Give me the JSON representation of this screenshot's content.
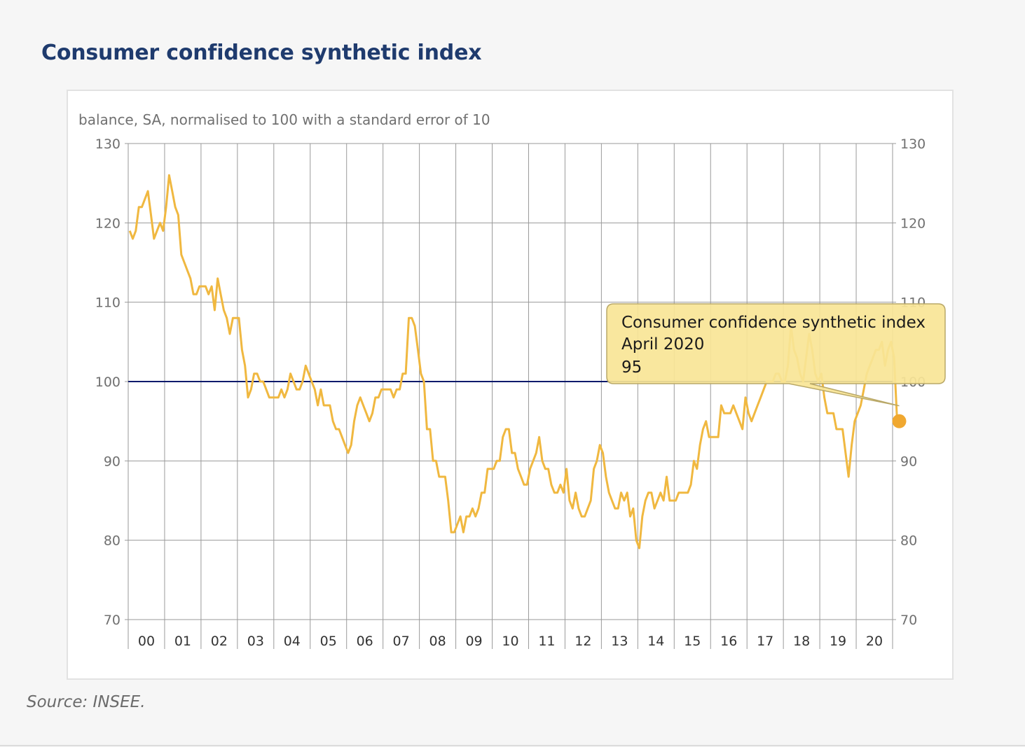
{
  "page": {
    "title": "Consumer confidence synthetic index",
    "source": "Source: INSEE."
  },
  "chart_data": {
    "type": "line",
    "title": "Consumer confidence synthetic index",
    "subtitle": "balance, SA, normalised to 100 with a standard error of 10",
    "ylim": [
      70,
      130
    ],
    "yticks": [
      70,
      80,
      90,
      100,
      110,
      120,
      130
    ],
    "yticks_labels": [
      "70",
      "80",
      "90",
      "100",
      "110",
      "120",
      "130"
    ],
    "x_start_year": 2000,
    "x_end_year": 2021,
    "xtick_labels": [
      "00",
      "01",
      "02",
      "03",
      "04",
      "05",
      "06",
      "07",
      "08",
      "09",
      "10",
      "11",
      "12",
      "13",
      "14",
      "15",
      "16",
      "17",
      "18",
      "19",
      "20"
    ],
    "reference_line": 100,
    "colors": {
      "series": "#f0b840",
      "reference": "#0a1a6b",
      "grid": "#9a9a9a",
      "highlight": "#f0a830",
      "tooltip_bg": "#f8e596",
      "tooltip_border": "#b9a868"
    },
    "series": [
      {
        "name": "Consumer confidence synthetic index",
        "start": "2000-01",
        "values": [
          119,
          118,
          119,
          122,
          122,
          123,
          124,
          121,
          118,
          119,
          120,
          119,
          122,
          126,
          124,
          122,
          121,
          116,
          115,
          114,
          113,
          111,
          111,
          112,
          112,
          112,
          111,
          112,
          109,
          113,
          111,
          109,
          108,
          106,
          108,
          108,
          108,
          104,
          102,
          98,
          99,
          101,
          101,
          100,
          100,
          99,
          98,
          98,
          98,
          98,
          99,
          98,
          99,
          101,
          100,
          99,
          99,
          100,
          102,
          101,
          100,
          99,
          97,
          99,
          97,
          97,
          97,
          95,
          94,
          94,
          93,
          92,
          91,
          92,
          95,
          97,
          98,
          97,
          96,
          95,
          96,
          98,
          98,
          99,
          99,
          99,
          99,
          98,
          99,
          99,
          101,
          101,
          108,
          108,
          107,
          104,
          101,
          100,
          94,
          94,
          90,
          90,
          88,
          88,
          88,
          85,
          81,
          81,
          82,
          83,
          81,
          83,
          83,
          84,
          83,
          84,
          86,
          86,
          89,
          89,
          89,
          90,
          90,
          93,
          94,
          94,
          91,
          91,
          89,
          88,
          87,
          87,
          89,
          90,
          91,
          93,
          90,
          89,
          89,
          87,
          86,
          86,
          87,
          86,
          89,
          85,
          84,
          86,
          84,
          83,
          83,
          84,
          85,
          89,
          90,
          92,
          91,
          88,
          86,
          85,
          84,
          84,
          86,
          85,
          86,
          83,
          84,
          80,
          79,
          83,
          85,
          86,
          86,
          84,
          85,
          86,
          85,
          88,
          85,
          85,
          85,
          86,
          86,
          86,
          86,
          87,
          90,
          89,
          92,
          94,
          95,
          93,
          93,
          93,
          93,
          97,
          96,
          96,
          96,
          97,
          96,
          95,
          94,
          98,
          96,
          95,
          96,
          97,
          98,
          99,
          100,
          100,
          100,
          101,
          101,
          100,
          100,
          102,
          107,
          104,
          103,
          101,
          100,
          103,
          106,
          104,
          101,
          100,
          101,
          98,
          96,
          96,
          96,
          94,
          94,
          94,
          91,
          88,
          92,
          95,
          96,
          97,
          99,
          101,
          102,
          103,
          104,
          104,
          105,
          102,
          104,
          105,
          103,
          95
        ],
        "last_point": {
          "label": "April 2020",
          "value": 95
        }
      }
    ],
    "tooltip": {
      "line1": "Consumer confidence synthetic index",
      "line2": "April 2020",
      "line3": "95"
    }
  }
}
